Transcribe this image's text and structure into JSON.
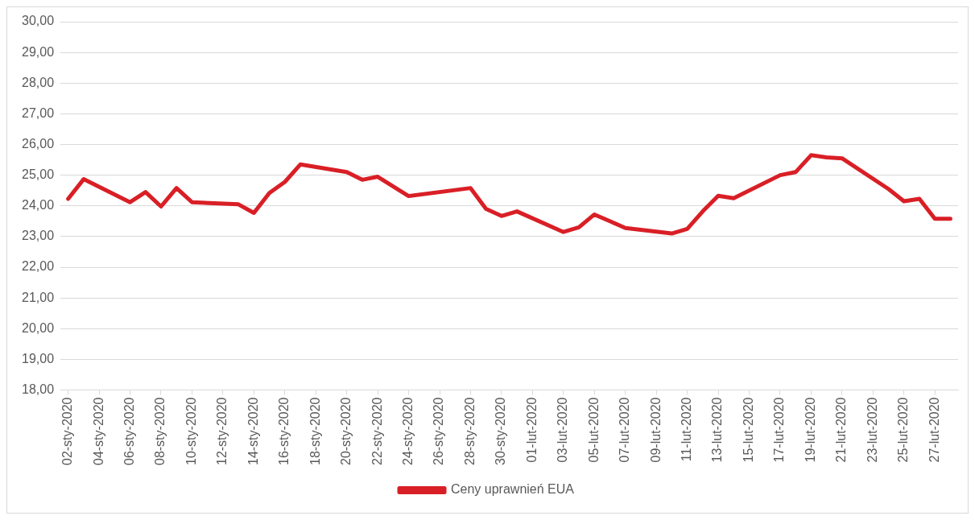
{
  "chart_data": {
    "type": "line",
    "x": [
      "2020-01-02",
      "2020-01-03",
      "2020-01-06",
      "2020-01-07",
      "2020-01-08",
      "2020-01-09",
      "2020-01-10",
      "2020-01-13",
      "2020-01-14",
      "2020-01-15",
      "2020-01-16",
      "2020-01-17",
      "2020-01-20",
      "2020-01-21",
      "2020-01-22",
      "2020-01-24",
      "2020-01-28",
      "2020-01-29",
      "2020-01-30",
      "2020-01-31",
      "2020-02-03",
      "2020-02-04",
      "2020-02-05",
      "2020-02-06",
      "2020-02-07",
      "2020-02-10",
      "2020-02-11",
      "2020-02-12",
      "2020-02-13",
      "2020-02-14",
      "2020-02-17",
      "2020-02-18",
      "2020-02-19",
      "2020-02-20",
      "2020-02-21",
      "2020-02-24",
      "2020-02-25",
      "2020-02-26",
      "2020-02-27",
      "2020-02-28"
    ],
    "series": [
      {
        "name": "Ceny uprawnień EUA",
        "color": "#d91f26",
        "values": [
          24.23,
          24.87,
          24.12,
          24.45,
          23.98,
          24.58,
          24.12,
          24.05,
          23.77,
          24.42,
          24.78,
          25.35,
          25.1,
          24.85,
          24.95,
          24.32,
          24.58,
          23.9,
          23.67,
          23.82,
          23.15,
          23.3,
          23.72,
          23.5,
          23.28,
          23.1,
          23.25,
          23.82,
          24.33,
          24.25,
          25.0,
          25.1,
          25.65,
          25.58,
          25.55,
          24.55,
          24.15,
          24.23,
          23.58,
          23.58
        ]
      }
    ],
    "xlim": [
      "2020-01-01T12:00",
      "2020-02-28T12:00"
    ],
    "xticks": [
      {
        "value": "2020-01-02",
        "label": "02-sty-2020"
      },
      {
        "value": "2020-01-04",
        "label": "04-sty-2020"
      },
      {
        "value": "2020-01-06",
        "label": "06-sty-2020"
      },
      {
        "value": "2020-01-08",
        "label": "08-sty-2020"
      },
      {
        "value": "2020-01-10",
        "label": "10-sty-2020"
      },
      {
        "value": "2020-01-12",
        "label": "12-sty-2020"
      },
      {
        "value": "2020-01-14",
        "label": "14-sty-2020"
      },
      {
        "value": "2020-01-16",
        "label": "16-sty-2020"
      },
      {
        "value": "2020-01-18",
        "label": "18-sty-2020"
      },
      {
        "value": "2020-01-20",
        "label": "20-sty-2020"
      },
      {
        "value": "2020-01-22",
        "label": "22-sty-2020"
      },
      {
        "value": "2020-01-24",
        "label": "24-sty-2020"
      },
      {
        "value": "2020-01-26",
        "label": "26-sty-2020"
      },
      {
        "value": "2020-01-28",
        "label": "28-sty-2020"
      },
      {
        "value": "2020-01-30",
        "label": "30-sty-2020"
      },
      {
        "value": "2020-02-01",
        "label": "01-lut-2020"
      },
      {
        "value": "2020-02-03",
        "label": "03-lut-2020"
      },
      {
        "value": "2020-02-05",
        "label": "05-lut-2020"
      },
      {
        "value": "2020-02-07",
        "label": "07-lut-2020"
      },
      {
        "value": "2020-02-09",
        "label": "09-lut-2020"
      },
      {
        "value": "2020-02-11",
        "label": "11-lut-2020"
      },
      {
        "value": "2020-02-13",
        "label": "13-lut-2020"
      },
      {
        "value": "2020-02-15",
        "label": "15-lut-2020"
      },
      {
        "value": "2020-02-17",
        "label": "17-lut-2020"
      },
      {
        "value": "2020-02-19",
        "label": "19-lut-2020"
      },
      {
        "value": "2020-02-21",
        "label": "21-lut-2020"
      },
      {
        "value": "2020-02-23",
        "label": "23-lut-2020"
      },
      {
        "value": "2020-02-25",
        "label": "25-lut-2020"
      },
      {
        "value": "2020-02-27",
        "label": "27-lut-2020"
      }
    ],
    "ylim": [
      18,
      30
    ],
    "yticks": [
      {
        "value": 18,
        "label": "18,00"
      },
      {
        "value": 19,
        "label": "19,00"
      },
      {
        "value": 20,
        "label": "20,00"
      },
      {
        "value": 21,
        "label": "21,00"
      },
      {
        "value": 22,
        "label": "22,00"
      },
      {
        "value": 23,
        "label": "23,00"
      },
      {
        "value": 24,
        "label": "24,00"
      },
      {
        "value": 25,
        "label": "25,00"
      },
      {
        "value": 26,
        "label": "26,00"
      },
      {
        "value": 27,
        "label": "27,00"
      },
      {
        "value": 28,
        "label": "28,00"
      },
      {
        "value": 29,
        "label": "29,00"
      },
      {
        "value": 30,
        "label": "30,00"
      }
    ],
    "grid": "y",
    "legend": "bottom",
    "marker": "none",
    "line_style": "solid"
  }
}
